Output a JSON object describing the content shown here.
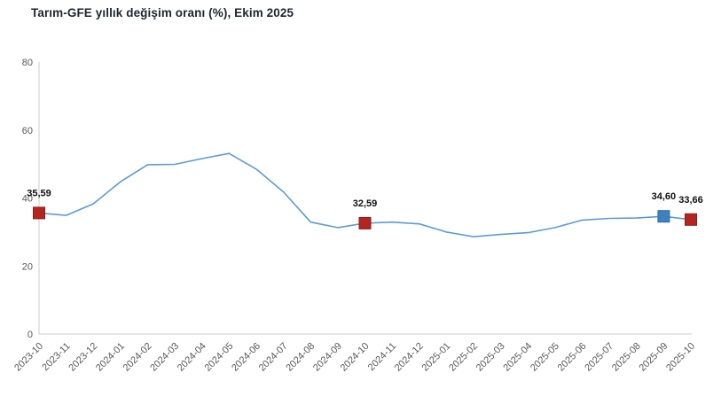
{
  "header": {
    "title": "Tarım-GFE yıllık değişim oranı (%), Ekim 2025"
  },
  "chart_data": {
    "type": "line",
    "title": "Tarım-GFE yıllık değişim oranı (%), Ekim 2025",
    "xlabel": "",
    "ylabel": "",
    "ylim": [
      0,
      80
    ],
    "yticks": [
      0,
      20,
      40,
      60,
      80
    ],
    "grid": false,
    "legend": "none",
    "x": [
      "2023-10",
      "2023-11",
      "2023-12",
      "2024-01",
      "2024-02",
      "2024-03",
      "2024-04",
      "2024-05",
      "2024-06",
      "2024-07",
      "2024-08",
      "2024-09",
      "2024-10",
      "2024-11",
      "2024-12",
      "2025-01",
      "2025-02",
      "2025-03",
      "2025-04",
      "2025-05",
      "2025-06",
      "2025-07",
      "2025-08",
      "2025-09",
      "2025-10"
    ],
    "values": [
      35.59,
      34.9,
      38.3,
      44.8,
      49.8,
      49.9,
      51.6,
      53.1,
      48.5,
      41.8,
      32.9,
      31.3,
      32.59,
      32.9,
      32.4,
      30.0,
      28.6,
      29.3,
      29.8,
      31.3,
      33.5,
      34.0,
      34.1,
      34.6,
      33.66
    ],
    "line_color": "#5b9bd5",
    "marker_colors": {
      "red": {
        "fill": "#b2261f",
        "stroke": "#8e1b17"
      },
      "blue": {
        "fill": "#3f81be",
        "stroke": "#2f6ca8"
      }
    },
    "labeled_points": [
      {
        "x": "2023-10",
        "value_label": "35,59",
        "marker": "red"
      },
      {
        "x": "2024-10",
        "value_label": "32,59",
        "marker": "red"
      },
      {
        "x": "2025-09",
        "value_label": "34,60",
        "marker": "blue"
      },
      {
        "x": "2025-10",
        "value_label": "33,66",
        "marker": "red"
      }
    ]
  }
}
